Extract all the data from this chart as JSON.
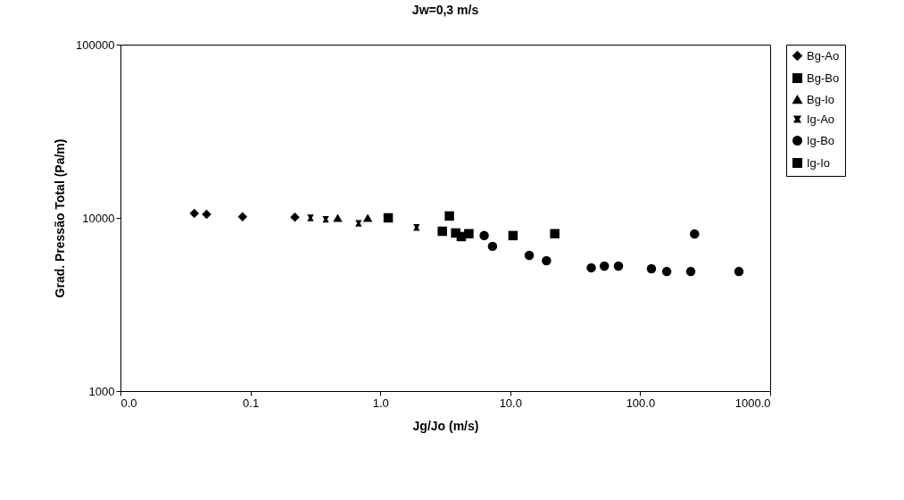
{
  "chart_data": {
    "type": "scatter",
    "title": "Jw=0,3 m/s",
    "xlabel": "Jg/Jo (m/s)",
    "ylabel": "Grad. Pressão Total (Pa/m)",
    "log": "xy",
    "grid": false,
    "legend": "right",
    "xlim": [
      0.01,
      1000
    ],
    "xticks": [
      {
        "value": 0.01,
        "label": "0.0"
      },
      {
        "value": 0.1,
        "label": "0.1"
      },
      {
        "value": 1,
        "label": "1.0"
      },
      {
        "value": 10,
        "label": "10.0"
      },
      {
        "value": 100,
        "label": "100.0"
      },
      {
        "value": 1000,
        "label": "1000.0"
      }
    ],
    "ylim": [
      1000,
      100000
    ],
    "yticks": [
      1000,
      10000,
      100000
    ],
    "series": [
      {
        "name": "Bg-Ao",
        "color": "#000000",
        "marker": "diamond",
        "x": [
          0.037,
          0.046,
          0.087,
          0.22
        ],
        "values": [
          10600,
          10500,
          10150,
          10100
        ]
      },
      {
        "name": "Bg-Bo",
        "color": "#000000",
        "marker": "square",
        "x": [
          1.15,
          3.4
        ],
        "values": [
          10000,
          10250
        ]
      },
      {
        "name": "Bg-Io",
        "color": "#000000",
        "marker": "triangle",
        "x": [
          0.47,
          0.8
        ],
        "values": [
          10000,
          10000
        ]
      },
      {
        "name": "Ig-Ao",
        "color": "#000000",
        "marker": "cross",
        "x": [
          0.29,
          0.38,
          0.68,
          1.9
        ],
        "values": [
          10000,
          9800,
          9300,
          8800
        ]
      },
      {
        "name": "Ig-Bo",
        "color": "#000000",
        "marker": "circle",
        "x": [
          6.3,
          7.3,
          14,
          19,
          42,
          53,
          68,
          122,
          160,
          245,
          262,
          575
        ],
        "values": [
          7900,
          6850,
          6080,
          5660,
          5150,
          5270,
          5270,
          5080,
          4900,
          4900,
          8080,
          4900
        ]
      },
      {
        "name": "Ig-Io",
        "color": "#000000",
        "marker": "square",
        "x": [
          3.0,
          3.8,
          4.2,
          4.8,
          10.5,
          22
        ],
        "values": [
          8370,
          8180,
          7800,
          8100,
          7900,
          8100
        ]
      }
    ]
  }
}
